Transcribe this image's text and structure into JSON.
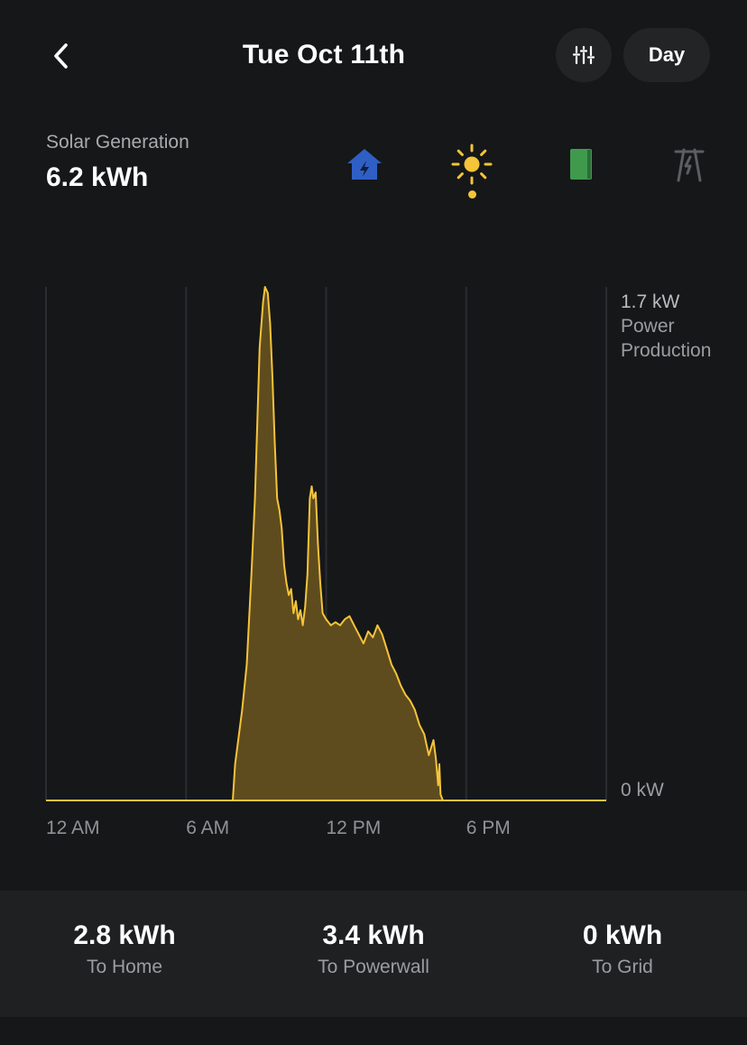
{
  "header": {
    "title": "Tue Oct 11th",
    "period": "Day"
  },
  "summary": {
    "label": "Solar Generation",
    "value": "6.2 kWh"
  },
  "sources": [
    {
      "icon": "home-bolt-icon",
      "color": "#2f5fc4"
    },
    {
      "icon": "sun-icon",
      "color": "#f4c43a",
      "active": true
    },
    {
      "icon": "powerwall-icon",
      "color": "#3f9a4e"
    },
    {
      "icon": "grid-tower-icon",
      "color": "#5b5e62"
    }
  ],
  "chart_data": {
    "type": "area",
    "xlabel": "",
    "ylabel": "Power Production",
    "y_max_label": "1.7 kW",
    "y_label_line1": "Power",
    "y_label_line2": "Production",
    "y_min_label": "0 kW",
    "ylim": [
      0,
      1.7
    ],
    "xlim": [
      0,
      24
    ],
    "x_tick_labels": [
      "12 AM",
      "6 AM",
      "12 PM",
      "6 PM"
    ],
    "x_ticks": [
      0,
      6,
      12,
      18
    ],
    "series": [
      {
        "color": "#f4c43a",
        "points": [
          [
            0,
            0
          ],
          [
            8.0,
            0
          ],
          [
            8.1,
            0.12
          ],
          [
            8.4,
            0.3
          ],
          [
            8.6,
            0.45
          ],
          [
            8.8,
            0.75
          ],
          [
            8.95,
            1.0
          ],
          [
            9.05,
            1.25
          ],
          [
            9.15,
            1.5
          ],
          [
            9.3,
            1.65
          ],
          [
            9.38,
            1.7
          ],
          [
            9.5,
            1.68
          ],
          [
            9.6,
            1.58
          ],
          [
            9.7,
            1.4
          ],
          [
            9.8,
            1.18
          ],
          [
            9.9,
            1.0
          ],
          [
            10.0,
            0.96
          ],
          [
            10.1,
            0.9
          ],
          [
            10.2,
            0.78
          ],
          [
            10.3,
            0.72
          ],
          [
            10.4,
            0.68
          ],
          [
            10.5,
            0.7
          ],
          [
            10.6,
            0.62
          ],
          [
            10.7,
            0.66
          ],
          [
            10.8,
            0.6
          ],
          [
            10.9,
            0.63
          ],
          [
            11.0,
            0.58
          ],
          [
            11.1,
            0.64
          ],
          [
            11.2,
            0.75
          ],
          [
            11.3,
            1.0
          ],
          [
            11.38,
            1.04
          ],
          [
            11.45,
            1.0
          ],
          [
            11.55,
            1.02
          ],
          [
            11.65,
            0.85
          ],
          [
            11.75,
            0.72
          ],
          [
            11.85,
            0.62
          ],
          [
            12.0,
            0.6
          ],
          [
            12.2,
            0.58
          ],
          [
            12.4,
            0.59
          ],
          [
            12.6,
            0.58
          ],
          [
            12.8,
            0.6
          ],
          [
            13.0,
            0.61
          ],
          [
            13.2,
            0.58
          ],
          [
            13.4,
            0.55
          ],
          [
            13.6,
            0.52
          ],
          [
            13.8,
            0.56
          ],
          [
            14.0,
            0.54
          ],
          [
            14.2,
            0.58
          ],
          [
            14.4,
            0.55
          ],
          [
            14.6,
            0.5
          ],
          [
            14.8,
            0.45
          ],
          [
            15.0,
            0.42
          ],
          [
            15.2,
            0.38
          ],
          [
            15.4,
            0.35
          ],
          [
            15.6,
            0.33
          ],
          [
            15.8,
            0.3
          ],
          [
            16.0,
            0.25
          ],
          [
            16.2,
            0.22
          ],
          [
            16.4,
            0.15
          ],
          [
            16.6,
            0.2
          ],
          [
            16.7,
            0.14
          ],
          [
            16.8,
            0.05
          ],
          [
            16.85,
            0.12
          ],
          [
            16.9,
            0.02
          ],
          [
            17.0,
            0
          ],
          [
            24,
            0
          ]
        ]
      }
    ]
  },
  "totals": [
    {
      "value": "2.8 kWh",
      "label": "To Home"
    },
    {
      "value": "3.4 kWh",
      "label": "To Powerwall"
    },
    {
      "value": "0 kWh",
      "label": "To Grid"
    }
  ]
}
